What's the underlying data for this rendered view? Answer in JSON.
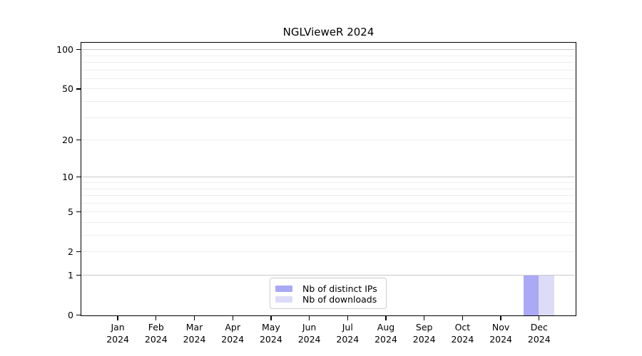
{
  "title": "NGLVieweR 2024",
  "chart_data": {
    "type": "bar",
    "title": "NGLVieweR 2024",
    "x_categories": [
      {
        "month": "Jan",
        "year": "2024"
      },
      {
        "month": "Feb",
        "year": "2024"
      },
      {
        "month": "Mar",
        "year": "2024"
      },
      {
        "month": "Apr",
        "year": "2024"
      },
      {
        "month": "May",
        "year": "2024"
      },
      {
        "month": "Jun",
        "year": "2024"
      },
      {
        "month": "Jul",
        "year": "2024"
      },
      {
        "month": "Aug",
        "year": "2024"
      },
      {
        "month": "Sep",
        "year": "2024"
      },
      {
        "month": "Oct",
        "year": "2024"
      },
      {
        "month": "Nov",
        "year": "2024"
      },
      {
        "month": "Dec",
        "year": "2024"
      }
    ],
    "series": [
      {
        "name": "Nb of distinct IPs",
        "color": "#a9a9f5",
        "values": [
          0,
          0,
          0,
          0,
          0,
          0,
          0,
          0,
          0,
          0,
          0,
          1
        ]
      },
      {
        "name": "Nb of downloads",
        "color": "#dcdcf8",
        "values": [
          0,
          0,
          0,
          0,
          0,
          0,
          0,
          0,
          0,
          0,
          0,
          1
        ]
      }
    ],
    "y_axis": {
      "scale": "log1p",
      "ticks": [
        0,
        1,
        2,
        5,
        10,
        20,
        50,
        100
      ],
      "ymax": 115
    },
    "grid": {
      "major_lines": [
        1,
        10,
        100
      ],
      "minor_lines": [
        2,
        3,
        4,
        5,
        6,
        7,
        8,
        9,
        20,
        30,
        40,
        50,
        60,
        70,
        80,
        90
      ],
      "major_color": "#c9c9c9",
      "minor_color": "#ededed"
    },
    "legend_position": "bottom-center"
  },
  "colors": {
    "axis": "#000000",
    "background": "#ffffff",
    "text": "#000000"
  }
}
